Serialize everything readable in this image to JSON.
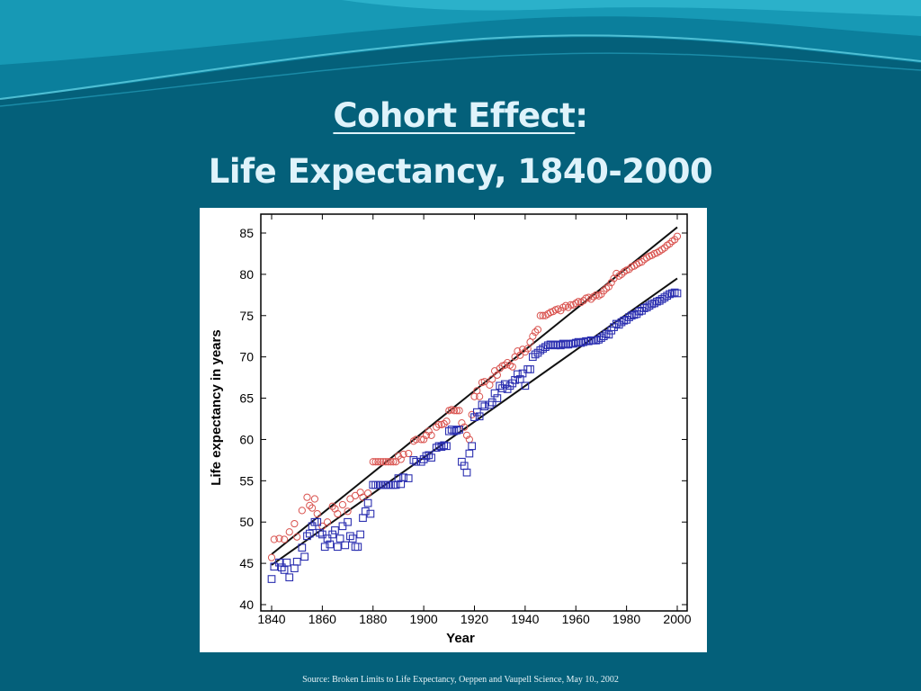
{
  "colors": {
    "background": "#04607a",
    "title": "#dff3fb",
    "female_marker": "#d9534f",
    "male_marker": "#2b2fb0",
    "trend_line": "#111111"
  },
  "slide": {
    "title_underlined": "Cohort Effect",
    "title_colon": ":",
    "title_line2": "Life Expectancy, 1840-2000",
    "source": "Source: Broken Limits to Life Expectancy, Oeppen and Vaupell Science, May 10., 2002"
  },
  "chart_data": {
    "type": "scatter",
    "xlabel": "Year",
    "ylabel": "Life expectancy in years",
    "xlim": [
      1840,
      2000
    ],
    "ylim": [
      40,
      87
    ],
    "xticks": [
      1840,
      1860,
      1880,
      1900,
      1920,
      1940,
      1960,
      1980,
      2000
    ],
    "yticks": [
      40,
      45,
      50,
      55,
      60,
      65,
      70,
      75,
      80,
      85
    ],
    "grid": false,
    "series": [
      {
        "marker": "circle",
        "color": "#d9534f",
        "points": [
          [
            1840,
            45.7
          ],
          [
            1841,
            47.9
          ],
          [
            1843,
            48
          ],
          [
            1845,
            47.9
          ],
          [
            1847,
            48.8
          ],
          [
            1849,
            49.8
          ],
          [
            1850,
            48.2
          ],
          [
            1852,
            51.4
          ],
          [
            1854,
            53
          ],
          [
            1855,
            52
          ],
          [
            1856,
            51.7
          ],
          [
            1857,
            52.8
          ],
          [
            1858,
            51
          ],
          [
            1860,
            49.5
          ],
          [
            1862,
            50
          ],
          [
            1864,
            51.9
          ],
          [
            1865,
            51.6
          ],
          [
            1866,
            51
          ],
          [
            1868,
            52.1
          ],
          [
            1870,
            51.3
          ],
          [
            1871,
            52.8
          ],
          [
            1873,
            53.2
          ],
          [
            1875,
            53.6
          ],
          [
            1876,
            53
          ],
          [
            1878,
            53.5
          ],
          [
            1880,
            57.3
          ],
          [
            1881,
            57.3
          ],
          [
            1882,
            57.3
          ],
          [
            1883,
            57.3
          ],
          [
            1884,
            57.3
          ],
          [
            1885,
            57.3
          ],
          [
            1886,
            57.3
          ],
          [
            1887,
            57.3
          ],
          [
            1888,
            57.3
          ],
          [
            1889,
            57.3
          ],
          [
            1890,
            58
          ],
          [
            1891,
            57.6
          ],
          [
            1892,
            58.2
          ],
          [
            1894,
            58.3
          ],
          [
            1896,
            59.8
          ],
          [
            1897,
            60
          ],
          [
            1899,
            60
          ],
          [
            1900,
            60
          ],
          [
            1901,
            60.5
          ],
          [
            1902,
            61
          ],
          [
            1903,
            60.5
          ],
          [
            1905,
            61.5
          ],
          [
            1906,
            61.8
          ],
          [
            1907,
            61.8
          ],
          [
            1908,
            61.9
          ],
          [
            1909,
            62.2
          ],
          [
            1910,
            63.5
          ],
          [
            1911,
            63.6
          ],
          [
            1912,
            63.5
          ],
          [
            1913,
            63.5
          ],
          [
            1914,
            63.5
          ],
          [
            1915,
            62
          ],
          [
            1916,
            61.5
          ],
          [
            1917,
            60.5
          ],
          [
            1918,
            60
          ],
          [
            1919,
            63
          ],
          [
            1920,
            65.2
          ],
          [
            1921,
            65.9
          ],
          [
            1922,
            65.2
          ],
          [
            1923,
            66.9
          ],
          [
            1924,
            67
          ],
          [
            1926,
            66.6
          ],
          [
            1927,
            67.3
          ],
          [
            1928,
            68.3
          ],
          [
            1929,
            67.8
          ],
          [
            1930,
            68.6
          ],
          [
            1931,
            68.9
          ],
          [
            1932,
            69
          ],
          [
            1933,
            69.3
          ],
          [
            1934,
            69
          ],
          [
            1935,
            68.8
          ],
          [
            1936,
            70
          ],
          [
            1937,
            70.7
          ],
          [
            1938,
            70.2
          ],
          [
            1939,
            70.9
          ],
          [
            1940,
            70.6
          ],
          [
            1941,
            71
          ],
          [
            1942,
            71.8
          ],
          [
            1943,
            72.5
          ],
          [
            1944,
            73
          ],
          [
            1945,
            73.3
          ],
          [
            1946,
            75
          ],
          [
            1947,
            75
          ],
          [
            1948,
            75
          ],
          [
            1949,
            75.2
          ],
          [
            1950,
            75.4
          ],
          [
            1951,
            75.5
          ],
          [
            1952,
            75.7
          ],
          [
            1953,
            75.8
          ],
          [
            1954,
            75.6
          ],
          [
            1955,
            76
          ],
          [
            1956,
            76.2
          ],
          [
            1957,
            76
          ],
          [
            1958,
            76.3
          ],
          [
            1959,
            76.3
          ],
          [
            1960,
            76.5
          ],
          [
            1961,
            76.7
          ],
          [
            1962,
            76.6
          ],
          [
            1963,
            76.8
          ],
          [
            1964,
            77.1
          ],
          [
            1965,
            77.2
          ],
          [
            1966,
            77
          ],
          [
            1967,
            77.3
          ],
          [
            1968,
            77.5
          ],
          [
            1969,
            77.4
          ],
          [
            1970,
            77.6
          ],
          [
            1971,
            78
          ],
          [
            1972,
            78.3
          ],
          [
            1973,
            78.5
          ],
          [
            1974,
            79
          ],
          [
            1975,
            79.5
          ],
          [
            1976,
            80.1
          ],
          [
            1977,
            79.8
          ],
          [
            1978,
            80
          ],
          [
            1979,
            80.3
          ],
          [
            1980,
            80.5
          ],
          [
            1981,
            80.6
          ],
          [
            1982,
            80.9
          ],
          [
            1983,
            81
          ],
          [
            1984,
            81.2
          ],
          [
            1985,
            81.4
          ],
          [
            1986,
            81.5
          ],
          [
            1987,
            81.8
          ],
          [
            1988,
            82
          ],
          [
            1989,
            82.2
          ],
          [
            1990,
            82.3
          ],
          [
            1991,
            82.5
          ],
          [
            1992,
            82.6
          ],
          [
            1993,
            82.8
          ],
          [
            1994,
            83
          ],
          [
            1995,
            83.2
          ],
          [
            1996,
            83.5
          ],
          [
            1997,
            83.7
          ],
          [
            1998,
            84
          ],
          [
            1999,
            84.2
          ],
          [
            2000,
            84.6
          ]
        ]
      },
      {
        "marker": "square",
        "color": "#2b2fb0",
        "points": [
          [
            1840,
            43.1
          ],
          [
            1841,
            44.6
          ],
          [
            1843,
            45.1
          ],
          [
            1844,
            44.5
          ],
          [
            1845,
            44.2
          ],
          [
            1846,
            45.1
          ],
          [
            1847,
            43.3
          ],
          [
            1849,
            44.4
          ],
          [
            1850,
            45.2
          ],
          [
            1852,
            46.9
          ],
          [
            1853,
            45.8
          ],
          [
            1854,
            48.3
          ],
          [
            1855,
            48.6
          ],
          [
            1856,
            49.5
          ],
          [
            1857,
            50
          ],
          [
            1858,
            50
          ],
          [
            1859,
            48.7
          ],
          [
            1860,
            48.5
          ],
          [
            1861,
            47
          ],
          [
            1862,
            48
          ],
          [
            1863,
            47.3
          ],
          [
            1864,
            48.5
          ],
          [
            1865,
            49
          ],
          [
            1866,
            47
          ],
          [
            1867,
            48
          ],
          [
            1868,
            49.5
          ],
          [
            1869,
            47.2
          ],
          [
            1870,
            50
          ],
          [
            1871,
            48.3
          ],
          [
            1872,
            48
          ],
          [
            1873,
            47
          ],
          [
            1874,
            47
          ],
          [
            1875,
            48.5
          ],
          [
            1876,
            50.5
          ],
          [
            1877,
            51.3
          ],
          [
            1878,
            52.3
          ],
          [
            1879,
            51
          ],
          [
            1880,
            54.5
          ],
          [
            1881,
            54.5
          ],
          [
            1882,
            54.5
          ],
          [
            1883,
            54.5
          ],
          [
            1884,
            54.5
          ],
          [
            1885,
            54.5
          ],
          [
            1886,
            54.5
          ],
          [
            1887,
            54.5
          ],
          [
            1888,
            54.5
          ],
          [
            1889,
            54.5
          ],
          [
            1890,
            55.3
          ],
          [
            1891,
            54.6
          ],
          [
            1892,
            55.4
          ],
          [
            1894,
            55.3
          ],
          [
            1896,
            57.5
          ],
          [
            1897,
            57.3
          ],
          [
            1899,
            57.3
          ],
          [
            1900,
            57.6
          ],
          [
            1901,
            58
          ],
          [
            1902,
            58.1
          ],
          [
            1903,
            57.8
          ],
          [
            1905,
            59
          ],
          [
            1906,
            59.2
          ],
          [
            1907,
            59.1
          ],
          [
            1908,
            59.3
          ],
          [
            1909,
            59.2
          ],
          [
            1910,
            61
          ],
          [
            1911,
            61.2
          ],
          [
            1912,
            61
          ],
          [
            1913,
            61.1
          ],
          [
            1914,
            61.2
          ],
          [
            1915,
            57.3
          ],
          [
            1916,
            56.8
          ],
          [
            1917,
            56
          ],
          [
            1918,
            58.3
          ],
          [
            1919,
            59.2
          ],
          [
            1920,
            62.7
          ],
          [
            1921,
            63.3
          ],
          [
            1922,
            62.8
          ],
          [
            1923,
            64.2
          ],
          [
            1924,
            64
          ],
          [
            1926,
            64.2
          ],
          [
            1927,
            64.5
          ],
          [
            1928,
            65.6
          ],
          [
            1929,
            65
          ],
          [
            1930,
            66.5
          ],
          [
            1931,
            66.2
          ],
          [
            1932,
            66.7
          ],
          [
            1933,
            66.1
          ],
          [
            1934,
            66.5
          ],
          [
            1935,
            66.8
          ],
          [
            1936,
            67.2
          ],
          [
            1937,
            67.9
          ],
          [
            1938,
            67.3
          ],
          [
            1939,
            68
          ],
          [
            1940,
            66.5
          ],
          [
            1941,
            68.5
          ],
          [
            1942,
            68.5
          ],
          [
            1943,
            70
          ],
          [
            1944,
            70.3
          ],
          [
            1945,
            70.5
          ],
          [
            1946,
            70.8
          ],
          [
            1947,
            71
          ],
          [
            1948,
            71.2
          ],
          [
            1949,
            71.4
          ],
          [
            1950,
            71.5
          ],
          [
            1951,
            71.5
          ],
          [
            1952,
            71.4
          ],
          [
            1953,
            71.5
          ],
          [
            1954,
            71.4
          ],
          [
            1955,
            71.6
          ],
          [
            1956,
            71.5
          ],
          [
            1957,
            71.5
          ],
          [
            1958,
            71.6
          ],
          [
            1959,
            71.6
          ],
          [
            1960,
            71.7
          ],
          [
            1961,
            71.8
          ],
          [
            1962,
            71.7
          ],
          [
            1963,
            71.8
          ],
          [
            1964,
            71.9
          ],
          [
            1965,
            71.9
          ],
          [
            1966,
            72
          ],
          [
            1967,
            72
          ],
          [
            1968,
            72
          ],
          [
            1969,
            72.1
          ],
          [
            1970,
            72.3
          ],
          [
            1971,
            72.5
          ],
          [
            1972,
            72.8
          ],
          [
            1973,
            72.7
          ],
          [
            1974,
            73.2
          ],
          [
            1975,
            73.6
          ],
          [
            1976,
            74
          ],
          [
            1977,
            73.9
          ],
          [
            1978,
            74.2
          ],
          [
            1979,
            74.4
          ],
          [
            1980,
            74.5
          ],
          [
            1981,
            74.8
          ],
          [
            1982,
            75
          ],
          [
            1983,
            75.1
          ],
          [
            1984,
            75.2
          ],
          [
            1985,
            75.5
          ],
          [
            1986,
            75.6
          ],
          [
            1987,
            75.9
          ],
          [
            1988,
            76
          ],
          [
            1989,
            76.2
          ],
          [
            1990,
            76.4
          ],
          [
            1991,
            76.5
          ],
          [
            1992,
            76.7
          ],
          [
            1993,
            76.8
          ],
          [
            1994,
            77
          ],
          [
            1995,
            77.2
          ],
          [
            1996,
            77.4
          ],
          [
            1997,
            77.6
          ],
          [
            1998,
            77.7
          ],
          [
            1999,
            77.8
          ],
          [
            2000,
            77.7
          ]
        ]
      }
    ],
    "trend_lines": [
      {
        "color": "#111111",
        "points": [
          [
            1840,
            46.1
          ],
          [
            2000,
            85.7
          ]
        ]
      },
      {
        "color": "#111111",
        "points": [
          [
            1840,
            44.8
          ],
          [
            2000,
            79.5
          ]
        ]
      }
    ]
  }
}
